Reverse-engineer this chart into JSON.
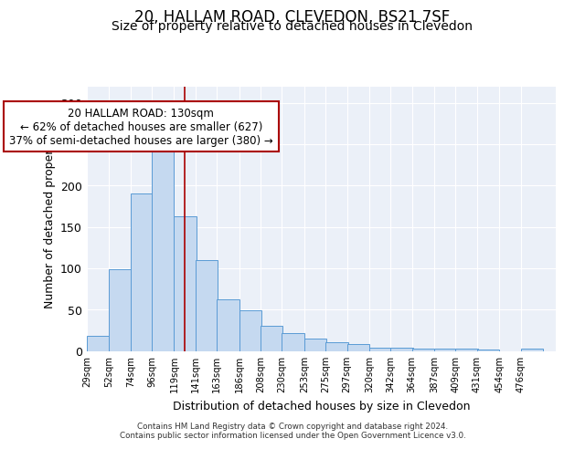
{
  "title": "20, HALLAM ROAD, CLEVEDON, BS21 7SF",
  "subtitle": "Size of property relative to detached houses in Clevedon",
  "xlabel": "Distribution of detached houses by size in Clevedon",
  "ylabel": "Number of detached properties",
  "bar_values": [
    18,
    99,
    190,
    243,
    163,
    110,
    62,
    49,
    30,
    22,
    15,
    11,
    8,
    4,
    4,
    3,
    3,
    3,
    2,
    0,
    3
  ],
  "bin_edges": [
    29,
    52,
    74,
    96,
    119,
    141,
    163,
    186,
    208,
    230,
    253,
    275,
    297,
    320,
    342,
    364,
    387,
    409,
    431,
    454,
    476
  ],
  "tick_labels": [
    "29sqm",
    "52sqm",
    "74sqm",
    "96sqm",
    "119sqm",
    "141sqm",
    "163sqm",
    "186sqm",
    "208sqm",
    "230sqm",
    "253sqm",
    "275sqm",
    "297sqm",
    "320sqm",
    "342sqm",
    "364sqm",
    "387sqm",
    "409sqm",
    "431sqm",
    "454sqm",
    "476sqm"
  ],
  "bar_color": "#C5D9F0",
  "bar_edge_color": "#5A9BD5",
  "property_size": 130,
  "property_line_color": "#AA0000",
  "annotation_text": "20 HALLAM ROAD: 130sqm\n← 62% of detached houses are smaller (627)\n37% of semi-detached houses are larger (380) →",
  "annotation_box_color": "#ffffff",
  "annotation_edge_color": "#AA0000",
  "ylim": [
    0,
    320
  ],
  "yticks": [
    0,
    50,
    100,
    150,
    200,
    250,
    300
  ],
  "bg_color": "#EBF0F8",
  "title_fontsize": 12,
  "subtitle_fontsize": 10,
  "footer_line1": "Contains HM Land Registry data © Crown copyright and database right 2024.",
  "footer_line2": "Contains public sector information licensed under the Open Government Licence v3.0."
}
